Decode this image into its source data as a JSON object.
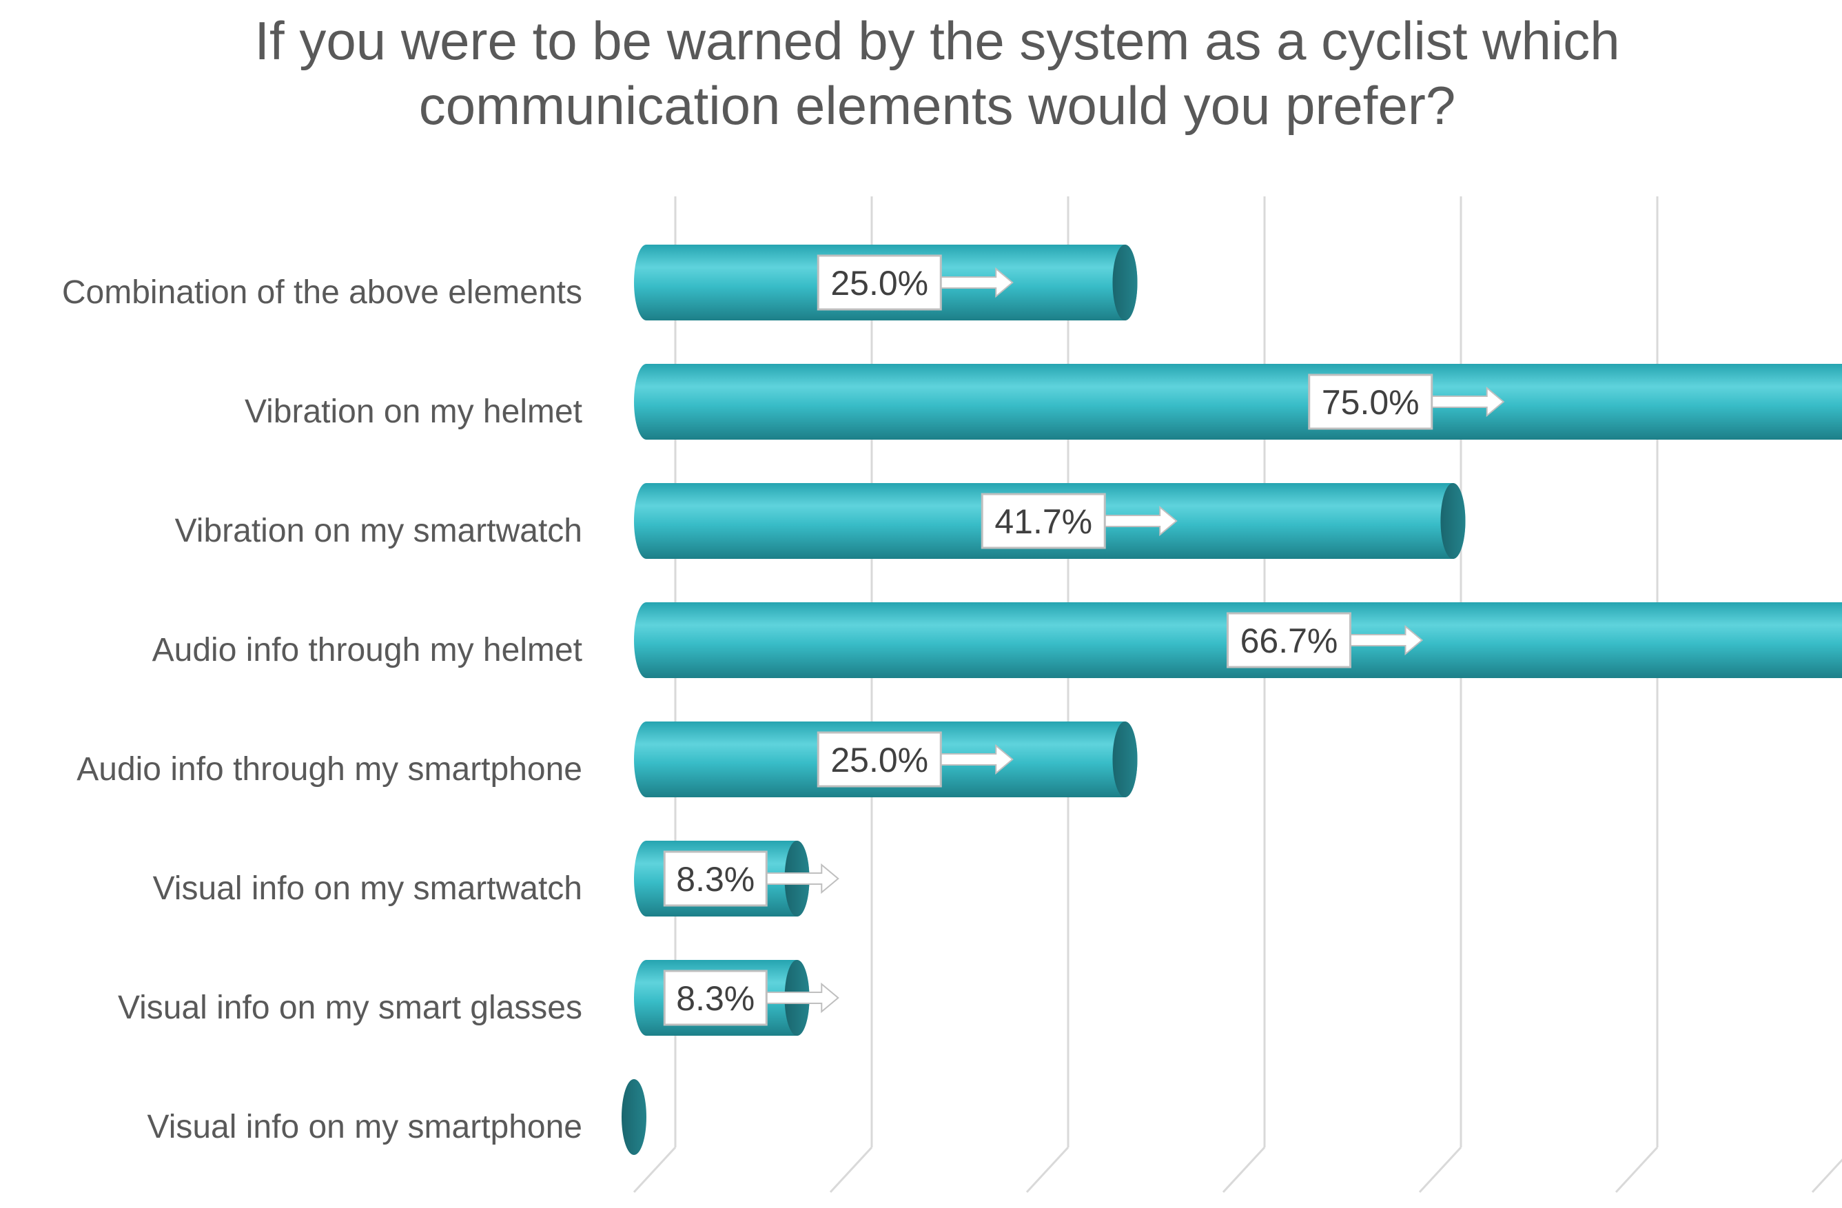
{
  "chart_data": {
    "type": "bar",
    "orientation": "horizontal",
    "style": "3d-cylinder",
    "title_lines": [
      "If you were to be warned by the system as a cyclist which",
      "communication elements would you prefer?"
    ],
    "categories": [
      "Combination of the above elements",
      "Vibration on my helmet",
      "Vibration on my smartwatch",
      "Audio info through my helmet",
      "Audio info through my smartphone",
      "Visual info on my smartwatch",
      "Visual info on my smart glasses",
      "Visual info on my smartphone"
    ],
    "values": [
      25.0,
      75.0,
      41.7,
      66.7,
      25.0,
      8.3,
      8.3,
      0.0
    ],
    "data_labels": [
      "25.0%",
      "75.0%",
      "41.7%",
      "66.7%",
      "25.0%",
      "8.3%",
      "8.3%",
      null
    ],
    "xlim": [
      0,
      80
    ],
    "gridlines": "vertical",
    "legend": "none",
    "colors": {
      "bar_front": "#2fb3bf",
      "bar_highlight": "#5fd3dc",
      "bar_shadow": "#1d7f88",
      "bar_cap": "#1e6f77",
      "gridline": "#d9d9d9",
      "text": "#595959"
    }
  }
}
